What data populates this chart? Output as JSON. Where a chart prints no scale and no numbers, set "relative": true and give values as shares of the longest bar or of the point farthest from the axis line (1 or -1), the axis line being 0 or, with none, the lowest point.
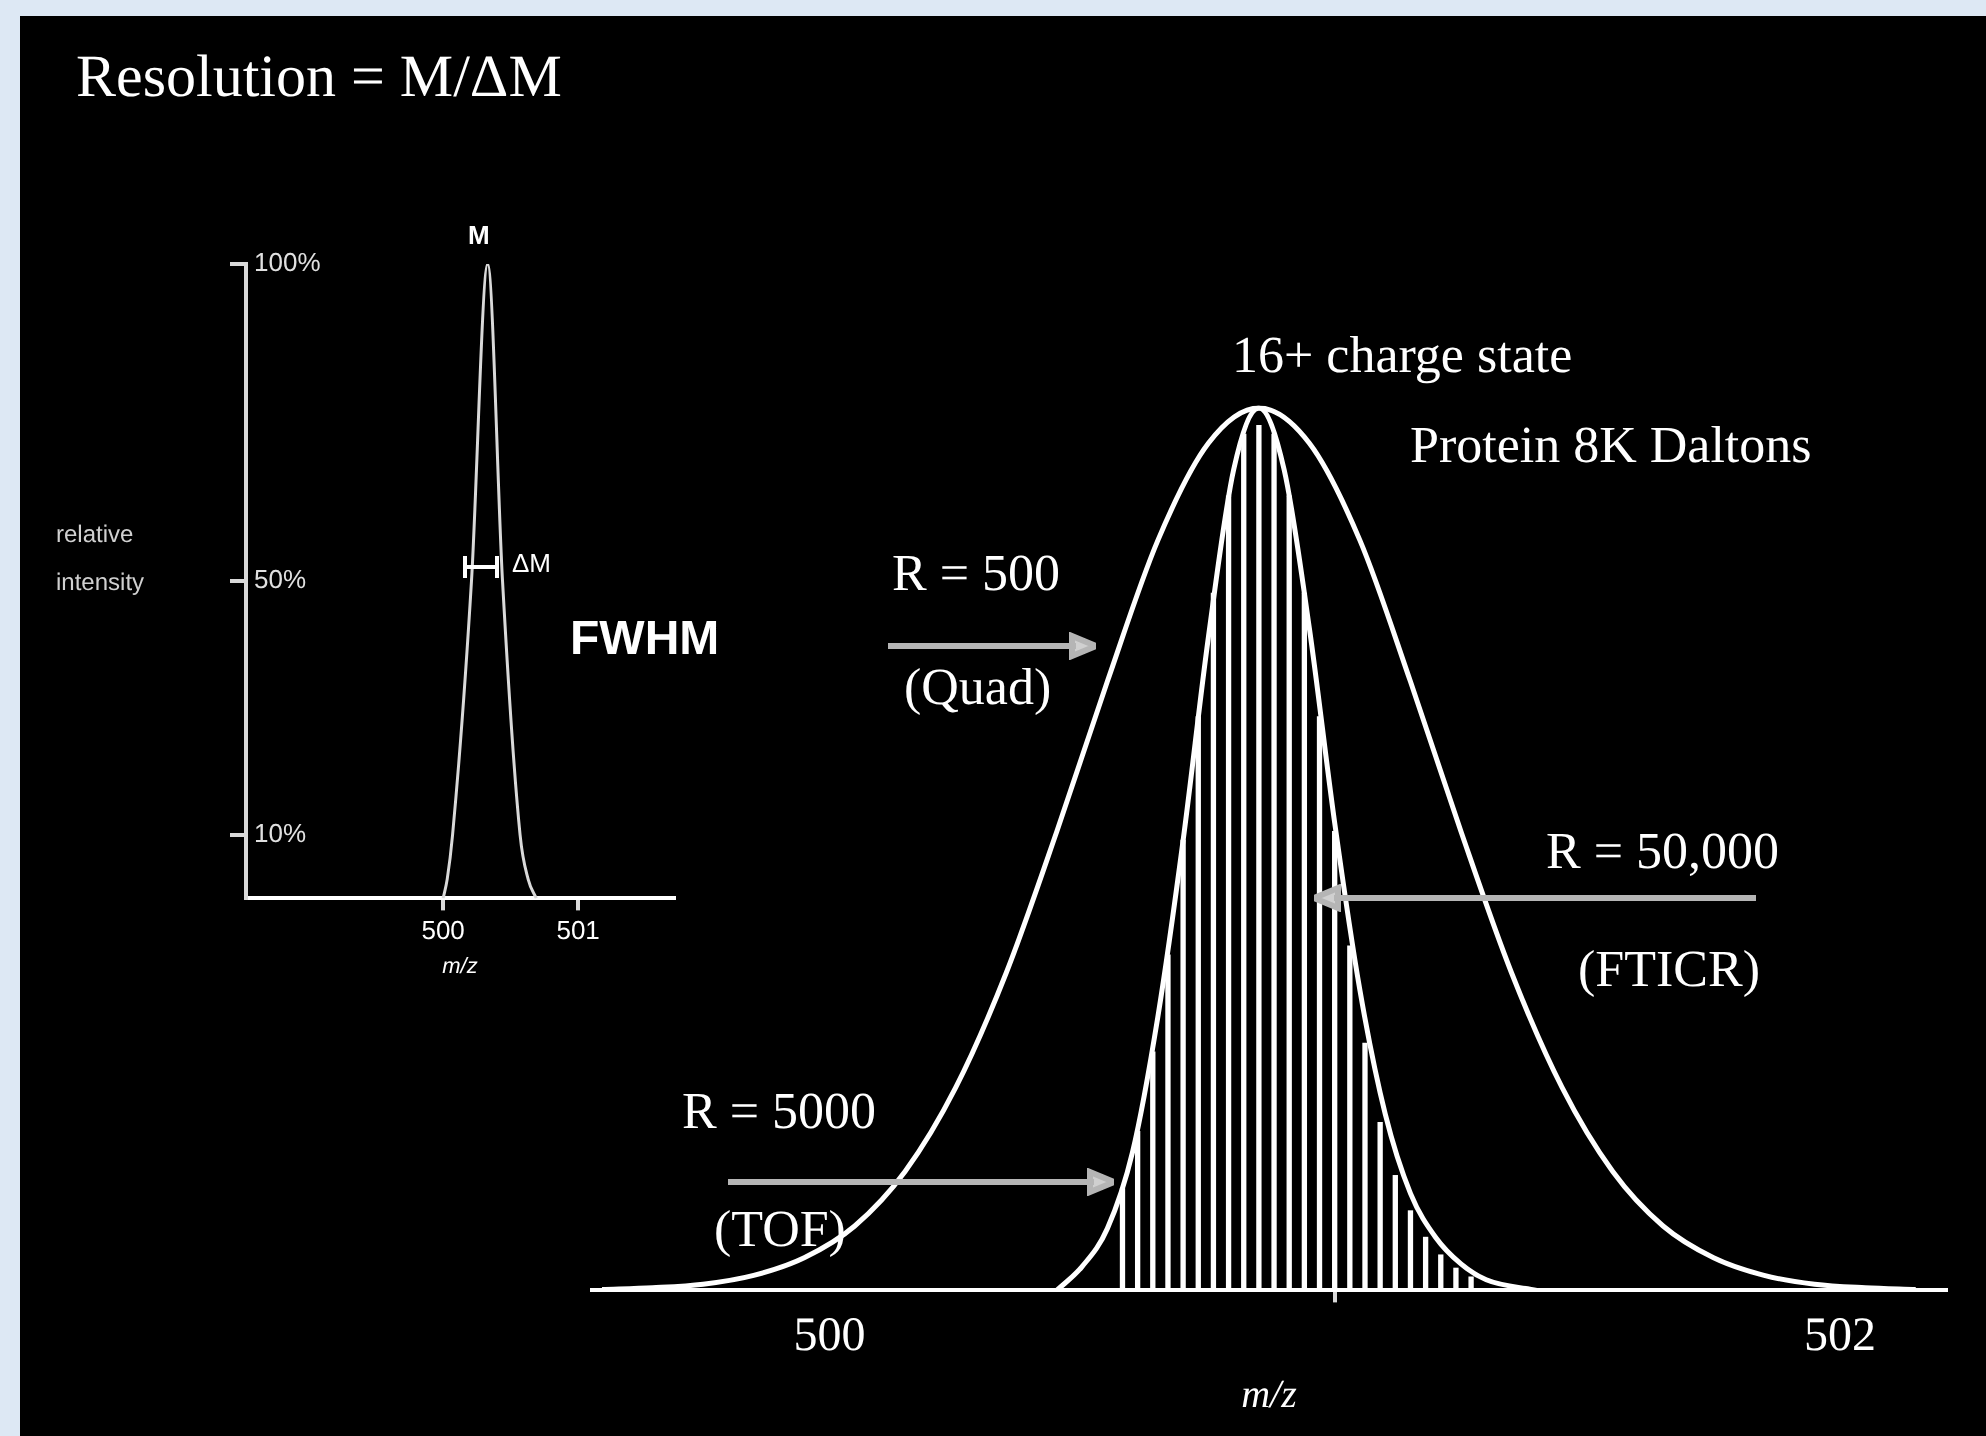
{
  "chart_data": [
    {
      "type": "line",
      "title": "Resolution = M/ΔM",
      "xlabel": "m/z",
      "ylabel": "relative intensity",
      "annotations": [
        "M",
        "ΔM",
        "FWHM"
      ],
      "xlim": [
        498.54,
        501.71
      ],
      "ylim": [
        0,
        100
      ],
      "xticks": [
        500,
        501
      ],
      "yticks": [
        {
          "value": 10,
          "label": "10%"
        },
        {
          "value": 50,
          "label": "50%"
        },
        {
          "value": 100,
          "label": "100%"
        }
      ],
      "grid": false,
      "series": [
        {
          "color": "#d9d9d9",
          "x": [
            500.0,
            500.03,
            500.07,
            500.21,
            500.33,
            500.44,
            500.57,
            500.63,
            500.69
          ],
          "values": [
            0,
            3,
            10,
            50,
            100,
            50,
            10,
            3,
            0
          ]
        }
      ]
    },
    {
      "type": "line",
      "xlabel": "m/z",
      "relative": true,
      "xlim": [
        499.53,
        502.21
      ],
      "xticks": [
        500,
        502
      ],
      "grid": false,
      "annotations": [
        "16+ charge state",
        "Protein 8K Daltons",
        "R = 500",
        "(Quad)",
        "R = 5000",
        "(TOF)",
        "R = 50,000",
        "(FTICR)"
      ],
      "series": [
        {
          "color": "#ffffff",
          "x": [
            499.55,
            499.65,
            499.75,
            499.85,
            499.95,
            500.05,
            500.15,
            500.25,
            500.35,
            500.45,
            500.55,
            500.65,
            500.75,
            500.85,
            500.95,
            501.05,
            501.15,
            501.25,
            501.35,
            501.45,
            501.55,
            501.65,
            501.75,
            501.85,
            501.95,
            502.05,
            502.15
          ],
          "values": [
            0.001,
            0.003,
            0.007,
            0.017,
            0.037,
            0.073,
            0.135,
            0.23,
            0.36,
            0.52,
            0.69,
            0.85,
            0.96,
            1,
            0.96,
            0.85,
            0.69,
            0.52,
            0.36,
            0.23,
            0.135,
            0.073,
            0.037,
            0.017,
            0.007,
            0.003,
            0.001
          ]
        },
        {
          "color": "#ffffff",
          "x": [
            500.45,
            500.5,
            500.55,
            500.6,
            500.65,
            500.7,
            500.75,
            500.8,
            500.85,
            500.9,
            500.95,
            501.0,
            501.05,
            501.1,
            501.15,
            501.2,
            501.25,
            501.3,
            501.4
          ],
          "values": [
            0,
            0.027,
            0.07,
            0.157,
            0.31,
            0.51,
            0.74,
            0.93,
            1,
            0.93,
            0.75,
            0.53,
            0.34,
            0.2,
            0.11,
            0.06,
            0.03,
            0.012,
            0
          ]
        },
        {
          "type": "bar",
          "color": "#ffffff",
          "x": [
            500.58,
            500.61,
            500.64,
            500.67,
            500.7,
            500.73,
            500.76,
            500.79,
            500.82,
            500.85,
            500.88,
            500.91,
            500.94,
            500.97,
            501.0,
            501.03,
            501.06,
            501.09,
            501.12,
            501.15,
            501.18,
            501.21,
            501.24,
            501.27
          ],
          "values": [
            0.115,
            0.18,
            0.27,
            0.38,
            0.51,
            0.65,
            0.79,
            0.9,
            0.97,
            0.98,
            0.97,
            0.9,
            0.79,
            0.65,
            0.52,
            0.39,
            0.28,
            0.19,
            0.13,
            0.09,
            0.06,
            0.04,
            0.025,
            0.015
          ]
        }
      ]
    }
  ]
}
